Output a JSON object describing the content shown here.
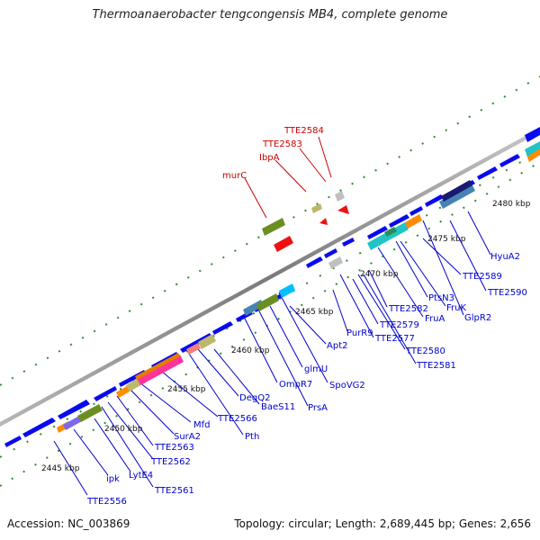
{
  "title": "Thermoanaerobacter tengcongensis MB4, complete genome",
  "footer": {
    "accession": "Accession: NC_003869",
    "summary": "Topology: circular; Length: 2,689,445 bp; Genes: 2,656"
  },
  "scale_labels": [
    "2445 kbp",
    "2450 kbp",
    "2455 kbp",
    "2460 kbp",
    "2465 kbp",
    "2470 kbp",
    "2475 kbp",
    "2480 kbp"
  ],
  "gene_labels_forward": [
    "murC",
    "IbpA",
    "TTE2583",
    "TTE2584"
  ],
  "gene_labels_reverse": [
    "TTE2556",
    "ipk",
    "LytE4",
    "TTE2561",
    "TTE2562",
    "TTE2563",
    "SurA2",
    "Mfd",
    "TTE2566",
    "Pth",
    "DegQ2",
    "BaeS11",
    "OmpR7",
    "PrsA",
    "glmU",
    "SpoVG2",
    "Apt2",
    "PurR9",
    "TTE2577",
    "TTE2579",
    "TTE2580",
    "TTE2581",
    "TTE2582",
    "FruA",
    "PtsN3",
    "FruK",
    "GlpR2",
    "TTE2589",
    "TTE2590",
    "HyuA2"
  ],
  "colors": {
    "backbone": "#8a8a8a",
    "gene_default": "#0a0aee",
    "gene_label_reverse": "#0000cc",
    "gene_label_forward": "#cc0000",
    "gc_dots": "#2e8b2e",
    "forward_marker": "#ee1111"
  }
}
